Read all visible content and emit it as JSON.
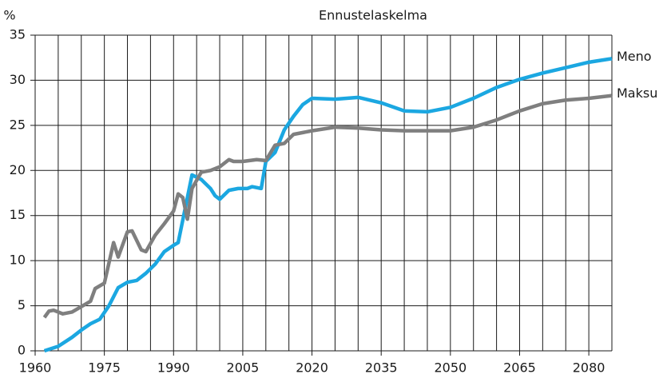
{
  "chart_data": {
    "type": "line",
    "title": "Ennustelaskelma",
    "y_label": "%",
    "xlim": [
      1960,
      2085
    ],
    "xticks": [
      1960,
      1975,
      1990,
      2005,
      2020,
      2035,
      2050,
      2065,
      2080
    ],
    "xgrid": [
      1960,
      1965,
      1970,
      1975,
      1980,
      1985,
      1990,
      1995,
      2000,
      2005,
      2010,
      2015,
      2020,
      2025,
      2030,
      2035,
      2040,
      2045,
      2050,
      2055,
      2060,
      2065,
      2070,
      2075,
      2080,
      2085
    ],
    "ylim": [
      0,
      35
    ],
    "yticks": [
      0,
      5,
      10,
      15,
      20,
      25,
      30,
      35
    ],
    "grid": true,
    "legend": "line-end",
    "series": [
      {
        "name": "Meno",
        "color": "#1ba7e1",
        "x": [
          1962,
          1965,
          1968,
          1970,
          1972,
          1974,
          1976,
          1978,
          1980,
          1982,
          1984,
          1986,
          1988,
          1990,
          1991,
          1993,
          1994,
          1996,
          1998,
          1999,
          2000,
          2002,
          2004,
          2006,
          2007,
          2009,
          2010,
          2012,
          2014,
          2016,
          2018,
          2020,
          2025,
          2030,
          2035,
          2040,
          2045,
          2050,
          2055,
          2060,
          2065,
          2070,
          2075,
          2080,
          2085
        ],
        "values": [
          0,
          0.5,
          1.5,
          2.3,
          3,
          3.5,
          5,
          7,
          7.6,
          7.8,
          8.6,
          9.6,
          11,
          11.7,
          12,
          17,
          19.5,
          19,
          18,
          17.2,
          16.8,
          17.8,
          18,
          18,
          18.2,
          18,
          21,
          22,
          24.5,
          26,
          27.3,
          28,
          27.9,
          28.1,
          27.5,
          26.6,
          26.5,
          27,
          28,
          29.2,
          30.1,
          30.8,
          31.4,
          32,
          32.4
        ]
      },
      {
        "name": "Maksu",
        "color": "#7f7f7f",
        "x": [
          1962,
          1963,
          1964,
          1966,
          1968,
          1970,
          1972,
          1973,
          1975,
          1977,
          1978,
          1980,
          1981,
          1983,
          1984,
          1986,
          1988,
          1990,
          1991,
          1992,
          1993,
          1994,
          1996,
          1998,
          2000,
          2002,
          2003,
          2005,
          2008,
          2010,
          2012,
          2014,
          2016,
          2020,
          2025,
          2030,
          2035,
          2040,
          2045,
          2050,
          2055,
          2060,
          2065,
          2070,
          2075,
          2080,
          2085
        ],
        "values": [
          3.7,
          4.4,
          4.5,
          4.1,
          4.3,
          4.9,
          5.5,
          6.9,
          7.5,
          12,
          10.4,
          13.2,
          13.3,
          11.2,
          11,
          12.8,
          14.1,
          15.5,
          17.4,
          17,
          14.6,
          18,
          19.8,
          20,
          20.4,
          21.2,
          21,
          21,
          21.2,
          21.1,
          22.8,
          23,
          24,
          24.4,
          24.8,
          24.7,
          24.5,
          24.4,
          24.4,
          24.4,
          24.8,
          25.6,
          26.6,
          27.4,
          27.8,
          28,
          28.3
        ]
      }
    ]
  }
}
